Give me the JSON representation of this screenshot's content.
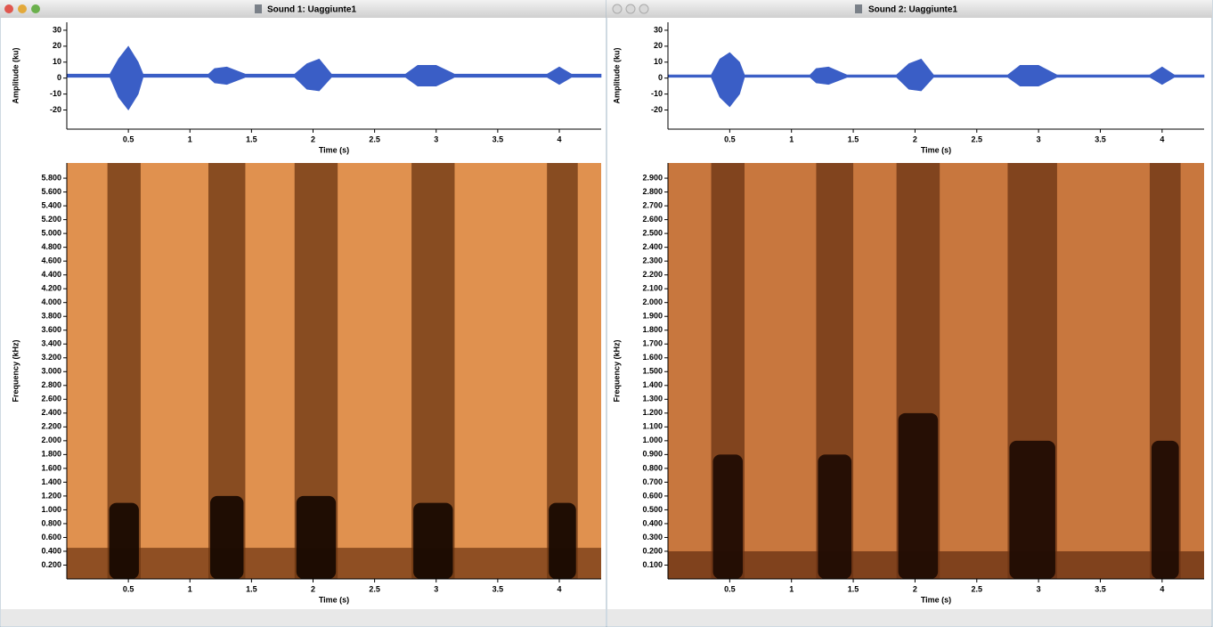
{
  "windows": [
    {
      "title": "Sound 1: Uaggiunte1"
    },
    {
      "title": "Sound 2: Uaggiunte1"
    }
  ],
  "chart_data": [
    {
      "type": "waveform",
      "y_label": "Amplitude (ku)",
      "x_label": "Time (s)",
      "color": "#3a5ec6",
      "xlim": [
        0,
        4.34
      ],
      "xticks": [
        0.5,
        1,
        1.5,
        2,
        2.5,
        3,
        3.5,
        4
      ],
      "ylim": [
        -32,
        35
      ],
      "yticks": [
        -20,
        -10,
        0,
        10,
        20,
        30
      ],
      "x": [
        0,
        0.35,
        0.42,
        0.5,
        0.58,
        0.62,
        1.15,
        1.2,
        1.3,
        1.45,
        1.85,
        1.95,
        2.05,
        2.15,
        2.75,
        2.85,
        3.0,
        3.15,
        3.9,
        4.0,
        4.1,
        4.34
      ],
      "max": [
        2.5,
        2.5,
        12,
        20,
        10,
        2.5,
        2.5,
        6,
        7,
        2.5,
        2.5,
        9,
        12,
        2.5,
        2.5,
        8,
        8,
        2.5,
        2.5,
        7,
        2.5,
        2.5
      ],
      "min": [
        0.5,
        0.5,
        -12,
        -20,
        -10,
        0.5,
        0.5,
        -3,
        -4,
        0.5,
        0.5,
        -7,
        -8,
        0.5,
        0.5,
        -5,
        -5,
        0.5,
        0.5,
        -4,
        0.5,
        0.5
      ]
    },
    {
      "type": "spectrogram",
      "y_label": "Frequency (kHz)",
      "x_label": "Time (s)",
      "color": "#e0914f",
      "band_color": "#6b3512",
      "strong_color": "#140700",
      "floor_color": "#7a3e18",
      "xlim": [
        0,
        4.34
      ],
      "xticks": [
        0.5,
        1,
        1.5,
        2,
        2.5,
        3,
        3.5,
        4
      ],
      "ylim": [
        0,
        6.02
      ],
      "yticks": [
        {
          "value": 0.2,
          "label": "0.200"
        },
        {
          "value": 0.4,
          "label": "0.400"
        },
        {
          "value": 0.6,
          "label": "0.600"
        },
        {
          "value": 0.8,
          "label": "0.800"
        },
        {
          "value": 1.0,
          "label": "1.000"
        },
        {
          "value": 1.2,
          "label": "1.200"
        },
        {
          "value": 1.4,
          "label": "1.400"
        },
        {
          "value": 1.6,
          "label": "1.600"
        },
        {
          "value": 1.8,
          "label": "1.800"
        },
        {
          "value": 2.0,
          "label": "2.000"
        },
        {
          "value": 2.2,
          "label": "2.200"
        },
        {
          "value": 2.4,
          "label": "2.400"
        },
        {
          "value": 2.6,
          "label": "2.600"
        },
        {
          "value": 2.8,
          "label": "2.800"
        },
        {
          "value": 3.0,
          "label": "3.000"
        },
        {
          "value": 3.2,
          "label": "3.200"
        },
        {
          "value": 3.4,
          "label": "3.400"
        },
        {
          "value": 3.6,
          "label": "3.600"
        },
        {
          "value": 3.8,
          "label": "3.800"
        },
        {
          "value": 4.0,
          "label": "4.000"
        },
        {
          "value": 4.2,
          "label": "4.200"
        },
        {
          "value": 4.4,
          "label": "4.400"
        },
        {
          "value": 4.6,
          "label": "4.600"
        },
        {
          "value": 4.8,
          "label": "4.800"
        },
        {
          "value": 5.0,
          "label": "5.000"
        },
        {
          "value": 5.2,
          "label": "5.200"
        },
        {
          "value": 5.4,
          "label": "5.400"
        },
        {
          "value": 5.6,
          "label": "5.600"
        },
        {
          "value": 5.8,
          "label": "5.800"
        }
      ],
      "noise_floor": 0.45,
      "bands": [
        {
          "start": 0.33,
          "end": 0.6,
          "strong_top": 1.1
        },
        {
          "start": 1.15,
          "end": 1.45,
          "strong_top": 1.2
        },
        {
          "start": 1.85,
          "end": 2.2,
          "strong_top": 1.2
        },
        {
          "start": 2.8,
          "end": 3.15,
          "strong_top": 1.1
        },
        {
          "start": 3.9,
          "end": 4.15,
          "strong_top": 1.1
        }
      ]
    },
    {
      "type": "waveform",
      "y_label": "Amplitude (ku)",
      "x_label": "Time (s)",
      "color": "#3a5ec6",
      "xlim": [
        0,
        4.34
      ],
      "xticks": [
        0.5,
        1,
        1.5,
        2,
        2.5,
        3,
        3.5,
        4
      ],
      "ylim": [
        -32,
        35
      ],
      "yticks": [
        -20,
        -10,
        0,
        10,
        20,
        30
      ],
      "x": [
        0,
        0.35,
        0.42,
        0.5,
        0.58,
        0.62,
        1.15,
        1.2,
        1.3,
        1.45,
        1.85,
        1.95,
        2.05,
        2.15,
        2.75,
        2.85,
        3.0,
        3.15,
        3.9,
        4.0,
        4.1,
        4.34
      ],
      "max": [
        2,
        2,
        12,
        16,
        10,
        2,
        2,
        6,
        7,
        2,
        2,
        9,
        12,
        2,
        2,
        8,
        8,
        2,
        2,
        7,
        2,
        2
      ],
      "min": [
        0.5,
        0.5,
        -12,
        -18,
        -10,
        0.5,
        0.5,
        -3,
        -4,
        0.5,
        0.5,
        -7,
        -8,
        0.5,
        0.5,
        -5,
        -5,
        0.5,
        0.5,
        -4,
        0.5,
        0.5
      ]
    },
    {
      "type": "spectrogram",
      "y_label": "Frequency (kHz)",
      "x_label": "Time (s)",
      "color": "#c8773e",
      "band_color": "#6a3314",
      "strong_color": "#1c0a02",
      "floor_color": "#6e3515",
      "xlim": [
        0,
        4.34
      ],
      "xticks": [
        0.5,
        1,
        1.5,
        2,
        2.5,
        3,
        3.5,
        4
      ],
      "ylim": [
        0,
        3.01
      ],
      "yticks": [
        {
          "value": 0.1,
          "label": "0.100"
        },
        {
          "value": 0.2,
          "label": "0.200"
        },
        {
          "value": 0.3,
          "label": "0.300"
        },
        {
          "value": 0.4,
          "label": "0.400"
        },
        {
          "value": 0.5,
          "label": "0.500"
        },
        {
          "value": 0.6,
          "label": "0.600"
        },
        {
          "value": 0.7,
          "label": "0.700"
        },
        {
          "value": 0.8,
          "label": "0.800"
        },
        {
          "value": 0.9,
          "label": "0.900"
        },
        {
          "value": 1.0,
          "label": "1.000"
        },
        {
          "value": 1.1,
          "label": "1.100"
        },
        {
          "value": 1.2,
          "label": "1.200"
        },
        {
          "value": 1.3,
          "label": "1.300"
        },
        {
          "value": 1.4,
          "label": "1.400"
        },
        {
          "value": 1.5,
          "label": "1.500"
        },
        {
          "value": 1.6,
          "label": "1.600"
        },
        {
          "value": 1.7,
          "label": "1.700"
        },
        {
          "value": 1.8,
          "label": "1.800"
        },
        {
          "value": 1.9,
          "label": "1.900"
        },
        {
          "value": 2.0,
          "label": "2.000"
        },
        {
          "value": 2.1,
          "label": "2.100"
        },
        {
          "value": 2.2,
          "label": "2.200"
        },
        {
          "value": 2.3,
          "label": "2.300"
        },
        {
          "value": 2.4,
          "label": "2.400"
        },
        {
          "value": 2.5,
          "label": "2.500"
        },
        {
          "value": 2.6,
          "label": "2.600"
        },
        {
          "value": 2.7,
          "label": "2.700"
        },
        {
          "value": 2.8,
          "label": "2.800"
        },
        {
          "value": 2.9,
          "label": "2.900"
        }
      ],
      "noise_floor": 0.2,
      "bands": [
        {
          "start": 0.35,
          "end": 0.62,
          "strong_top": 0.9
        },
        {
          "start": 1.2,
          "end": 1.5,
          "strong_top": 0.9
        },
        {
          "start": 1.85,
          "end": 2.2,
          "strong_top": 1.2
        },
        {
          "start": 2.75,
          "end": 3.15,
          "strong_top": 1.0
        },
        {
          "start": 3.9,
          "end": 4.15,
          "strong_top": 1.0
        }
      ]
    }
  ]
}
